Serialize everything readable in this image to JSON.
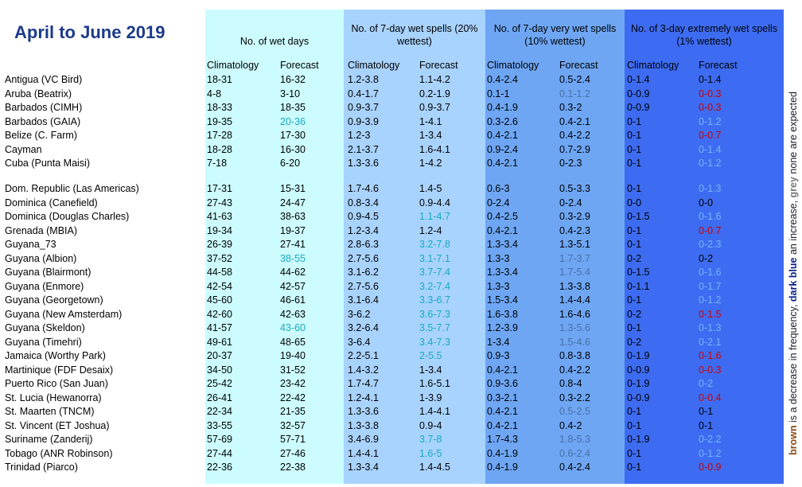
{
  "title": "April to June 2019",
  "headers": [
    "No. of wet days",
    "No. of 7-day wet spells (20% wettest)",
    "No. of 7-day very wet spells (10% wettest)",
    "No. of 3-day extremely wet spells (1% wettest)"
  ],
  "subheaders": [
    "Climatology",
    "Forecast"
  ],
  "note": [
    {
      "text": "brown",
      "color": "#8b4a12"
    },
    {
      "text": " is a decrease in frequency, ",
      "color": "#1a1a2e"
    },
    {
      "text": "dark blue",
      "color": "#0b1f8a"
    },
    {
      "text": " an increase, ",
      "color": "#1a1a2e"
    },
    {
      "text": "grey",
      "color": "#777777"
    },
    {
      "text": " none are expected",
      "color": "#1a1a2e"
    }
  ],
  "groups": [
    [
      {
        "station": "Antigua (VC Bird)",
        "cells": [
          "18-31",
          "16-32",
          "1.2-3.8",
          "1.1-4.2",
          "0.4-2.4",
          "0.5-2.4",
          "0-1.4",
          "0-1.4"
        ],
        "forecast_colors": [
          "#000000",
          "#000000",
          "#000000",
          "#000000"
        ]
      },
      {
        "station": "Aruba (Beatrix)",
        "cells": [
          "4-8",
          "3-10",
          "0.4-1.7",
          "0.2-1.9",
          "0.1-1",
          "0.1-1.2",
          "0-0.9",
          "0-0.3"
        ],
        "forecast_colors": [
          "#000000",
          "#000000",
          "#4a6fa8",
          "#cc0000"
        ]
      },
      {
        "station": "Barbados (CIMH)",
        "cells": [
          "18-33",
          "18-35",
          "0.9-3.7",
          "0.9-3.7",
          "0.4-1.9",
          "0.3-2",
          "0-0.9",
          "0-0.3"
        ],
        "forecast_colors": [
          "#000000",
          "#000000",
          "#000000",
          "#cc0000"
        ]
      },
      {
        "station": "Barbados (GAIA)",
        "cells": [
          "19-35",
          "20-36",
          "0.9-3.9",
          "1-4.1",
          "0.3-2.6",
          "0.4-2.1",
          "0-1",
          "0-1.2"
        ],
        "forecast_colors": [
          "#17a9c4",
          "#000000",
          "#000000",
          "#74b6ff"
        ]
      },
      {
        "station": "Belize (C. Farm)",
        "cells": [
          "17-28",
          "17-30",
          "1.2-3",
          "1-3.4",
          "0.4-2.1",
          "0.4-2.2",
          "0-1",
          "0-0.7"
        ],
        "forecast_colors": [
          "#000000",
          "#000000",
          "#000000",
          "#cc0000"
        ]
      },
      {
        "station": "Cayman",
        "cells": [
          "18-28",
          "16-30",
          "2.1-3.7",
          "1.6-4.1",
          "0.9-2.4",
          "0.7-2.9",
          "0-1",
          "0-1.4"
        ],
        "forecast_colors": [
          "#000000",
          "#000000",
          "#000000",
          "#74b6ff"
        ]
      },
      {
        "station": "Cuba (Punta Maisi)",
        "cells": [
          "7-18",
          "6-20",
          "1.3-3.6",
          "1-4.2",
          "0.4-2.1",
          "0-2.3",
          "0-1",
          "0-1.2"
        ],
        "forecast_colors": [
          "#000000",
          "#000000",
          "#000000",
          "#74b6ff"
        ]
      }
    ],
    [
      {
        "station": "Dom. Republic (Las Americas)",
        "cells": [
          "17-31",
          "15-31",
          "1.7-4.6",
          "1.4-5",
          "0.6-3",
          "0.5-3.3",
          "0-1",
          "0-1.3"
        ],
        "forecast_colors": [
          "#000000",
          "#000000",
          "#000000",
          "#74b6ff"
        ]
      },
      {
        "station": "Dominica (Canefield)",
        "cells": [
          "27-43",
          "24-47",
          "0.8-3.4",
          "0.9-4.4",
          "0-2.4",
          "0-2.4",
          "0-0",
          "0-0"
        ],
        "forecast_colors": [
          "#000000",
          "#000000",
          "#000000",
          "#000000"
        ]
      },
      {
        "station": "Dominica (Douglas Charles)",
        "cells": [
          "41-63",
          "38-63",
          "0.9-4.5",
          "1.1-4.7",
          "0.4-2.5",
          "0.3-2.9",
          "0-1.5",
          "0-1.6"
        ],
        "forecast_colors": [
          "#000000",
          "#17a9c4",
          "#000000",
          "#74b6ff"
        ]
      },
      {
        "station": "Grenada (MBIA)",
        "cells": [
          "19-34",
          "19-37",
          "1.2-3.4",
          "1.2-4",
          "0.4-2.1",
          "0.4-2.3",
          "0-1",
          "0-0.7"
        ],
        "forecast_colors": [
          "#000000",
          "#000000",
          "#000000",
          "#cc0000"
        ]
      },
      {
        "station": "Guyana_73",
        "cells": [
          "26-39",
          "27-41",
          "2.8-6.3",
          "3.2-7.8",
          "1.3-3.4",
          "1.3-5.1",
          "0-1",
          "0-2.3"
        ],
        "forecast_colors": [
          "#000000",
          "#17a9c4",
          "#000000",
          "#74b6ff"
        ]
      },
      {
        "station": "Guyana (Albion)",
        "cells": [
          "37-52",
          "38-55",
          "2.7-5.6",
          "3.1-7.1",
          "1.3-3",
          "1.7-3.7",
          "0-2",
          "0-2"
        ],
        "forecast_colors": [
          "#17a9c4",
          "#17a9c4",
          "#4a6fa8",
          "#000000"
        ]
      },
      {
        "station": "Guyana (Blairmont)",
        "cells": [
          "44-58",
          "44-62",
          "3.1-6.2",
          "3.7-7.4",
          "1.3-3.4",
          "1.7-5.4",
          "0-1.5",
          "0-1.6"
        ],
        "forecast_colors": [
          "#000000",
          "#17a9c4",
          "#4a6fa8",
          "#74b6ff"
        ]
      },
      {
        "station": "Guyana (Enmore)",
        "cells": [
          "42-54",
          "42-57",
          "2.7-5.6",
          "3.2-7.4",
          "1.3-3",
          "1.3-3.8",
          "0-1.1",
          "0-1.7"
        ],
        "forecast_colors": [
          "#000000",
          "#17a9c4",
          "#000000",
          "#74b6ff"
        ]
      },
      {
        "station": "Guyana (Georgetown)",
        "cells": [
          "45-60",
          "46-61",
          "3.1-6.4",
          "3.3-6.7",
          "1.5-3.4",
          "1.4-4.4",
          "0-1",
          "0-1.2"
        ],
        "forecast_colors": [
          "#000000",
          "#17a9c4",
          "#000000",
          "#74b6ff"
        ]
      },
      {
        "station": "Guyana (New Amsterdam)",
        "cells": [
          "42-60",
          "42-63",
          "3-6.2",
          "3.6-7.3",
          "1.6-3.8",
          "1.6-4.6",
          "0-2",
          "0-1.5"
        ],
        "forecast_colors": [
          "#000000",
          "#17a9c4",
          "#000000",
          "#cc0000"
        ]
      },
      {
        "station": "Guyana (Skeldon)",
        "cells": [
          "41-57",
          "43-60",
          "3.2-6.4",
          "3.5-7.7",
          "1.2-3.9",
          "1.3-5.6",
          "0-1",
          "0-1.3"
        ],
        "forecast_colors": [
          "#17a9c4",
          "#17a9c4",
          "#4a6fa8",
          "#74b6ff"
        ]
      },
      {
        "station": "Guyana (Timehri)",
        "cells": [
          "49-61",
          "48-65",
          "3-6.4",
          "3.4-7.3",
          "1-3.4",
          "1.5-4.6",
          "0-2",
          "0-2.1"
        ],
        "forecast_colors": [
          "#000000",
          "#17a9c4",
          "#4a6fa8",
          "#74b6ff"
        ]
      },
      {
        "station": "Jamaica (Worthy Park)",
        "cells": [
          "20-37",
          "19-40",
          "2.2-5.1",
          "2-5.5",
          "0.9-3",
          "0.8-3.8",
          "0-1.9",
          "0-1.6"
        ],
        "forecast_colors": [
          "#000000",
          "#17a9c4",
          "#000000",
          "#cc0000"
        ]
      },
      {
        "station": "Martinique (FDF Desaix)",
        "cells": [
          "34-50",
          "31-52",
          "1.4-3.2",
          "1-3.4",
          "0.4-2.1",
          "0.4-2.2",
          "0-0.9",
          "0-0.3"
        ],
        "forecast_colors": [
          "#000000",
          "#000000",
          "#000000",
          "#cc0000"
        ]
      },
      {
        "station": "Puerto Rico (San Juan)",
        "cells": [
          "25-42",
          "23-42",
          "1.7-4.7",
          "1.6-5.1",
          "0.9-3.6",
          "0.8-4",
          "0-1.9",
          "0-2"
        ],
        "forecast_colors": [
          "#000000",
          "#000000",
          "#000000",
          "#74b6ff"
        ]
      },
      {
        "station": "St. Lucia (Hewanorra)",
        "cells": [
          "26-41",
          "22-42",
          "1.2-4.1",
          "1-3.9",
          "0.3-2.1",
          "0.3-2.2",
          "0-0.9",
          "0-0.4"
        ],
        "forecast_colors": [
          "#000000",
          "#000000",
          "#000000",
          "#cc0000"
        ]
      },
      {
        "station": "St. Maarten (TNCM)",
        "cells": [
          "22-34",
          "21-35",
          "1.3-3.6",
          "1.4-4.1",
          "0.4-2.1",
          "0.5-2.5",
          "0-1",
          "0-1"
        ],
        "forecast_colors": [
          "#000000",
          "#000000",
          "#4a6fa8",
          "#000000"
        ]
      },
      {
        "station": "St. Vincent (ET Joshua)",
        "cells": [
          "33-55",
          "32-57",
          "1.3-3.8",
          "0.9-4",
          "0.4-2.1",
          "0.4-2",
          "0-1",
          "0-1"
        ],
        "forecast_colors": [
          "#000000",
          "#000000",
          "#000000",
          "#000000"
        ]
      },
      {
        "station": "Suriname (Zanderij)",
        "cells": [
          "57-69",
          "57-71",
          "3.4-6.9",
          "3.7-8",
          "1.7-4.3",
          "1.8-5.3",
          "0-1.9",
          "0-2.2"
        ],
        "forecast_colors": [
          "#000000",
          "#17a9c4",
          "#4a6fa8",
          "#74b6ff"
        ]
      },
      {
        "station": "Tobago (ANR Robinson)",
        "cells": [
          "27-44",
          "27-46",
          "1.4-4.1",
          "1.6-5",
          "0.4-1.9",
          "0.6-2.4",
          "0-1",
          "0-1.2"
        ],
        "forecast_colors": [
          "#000000",
          "#17a9c4",
          "#4a6fa8",
          "#74b6ff"
        ]
      },
      {
        "station": "Trinidad (Piarco)",
        "cells": [
          "22-36",
          "22-38",
          "1.3-3.4",
          "1.4-4.5",
          "0.4-1.9",
          "0.4-2.4",
          "0-1",
          "0-0.9"
        ],
        "forecast_colors": [
          "#000000",
          "#000000",
          "#000000",
          "#cc0000"
        ]
      }
    ]
  ]
}
